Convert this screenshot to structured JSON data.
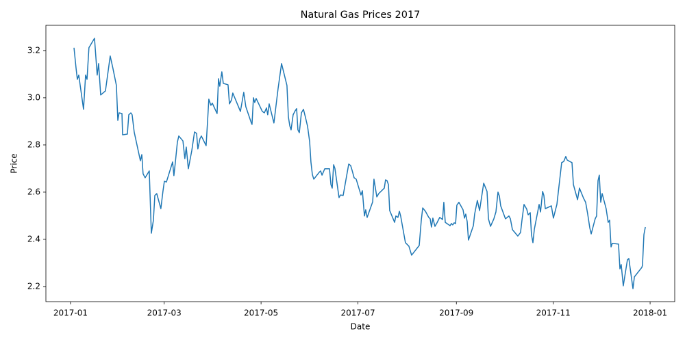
{
  "chart_data": {
    "type": "line",
    "title": "Natural Gas Prices 2017",
    "x_label": "Date",
    "y_label": "Price",
    "x": [
      2.2,
      3.5,
      4.3,
      5.2,
      8.2,
      9.5,
      10.4,
      11.6,
      15.1,
      16.8,
      17.7,
      19.0,
      22.0,
      25.0,
      26.7,
      28.9,
      29.8,
      30.6,
      32.4,
      32.8,
      35.8,
      36.7,
      38.0,
      38.8,
      40.1,
      44.0,
      44.9,
      45.7,
      47.0,
      49.6,
      50.9,
      52.2,
      53.1,
      54.3,
      56.9,
      58.2,
      59.1,
      60.4,
      64.3,
      65.1,
      66.0,
      67.3,
      68.2,
      70.8,
      72.0,
      72.9,
      74.2,
      76.4,
      78.1,
      79.4,
      80.2,
      81.5,
      82.4,
      85.4,
      86.3,
      87.1,
      88.4,
      89.3,
      92.3,
      93.2,
      94.0,
      95.3,
      96.2,
      99.2,
      100.1,
      101.4,
      102.2,
      107.0,
      109.1,
      110.4,
      113.9,
      114.3,
      115.2,
      116.0,
      116.9,
      120.8,
      122.1,
      123.4,
      124.2,
      125.1,
      128.1,
      130.7,
      132.9,
      136.3,
      137.2,
      138.1,
      138.9,
      140.2,
      141.5,
      142.4,
      143.2,
      144.1,
      145.4,
      146.7,
      148.0,
      149.3,
      150.6,
      151.4,
      152.3,
      153.2,
      156.6,
      157.5,
      158.4,
      160.1,
      163.1,
      164.0,
      164.8,
      165.7,
      166.5,
      169.1,
      170.0,
      171.7,
      175.2,
      176.4,
      177.3,
      178.6,
      179.9,
      182.9,
      183.8,
      185.1,
      185.9,
      186.8,
      190.3,
      191.1,
      192.9,
      194.1,
      197.6,
      198.4,
      199.3,
      200.2,
      201.0,
      204.1,
      204.9,
      206.2,
      207.1,
      207.9,
      210.9,
      213.1,
      214.8,
      219.6,
      220.9,
      221.8,
      223.5,
      225.6,
      226.5,
      227.3,
      228.2,
      229.5,
      230.8,
      232.5,
      234.3,
      235.1,
      236.0,
      239.0,
      239.9,
      240.7,
      241.6,
      242.5,
      243.3,
      244.6,
      247.2,
      248.1,
      248.9,
      249.8,
      250.6,
      253.7,
      254.5,
      256.2,
      257.6,
      260.2,
      262.3,
      263.2,
      264.5,
      266.6,
      267.9,
      269.2,
      270.1,
      270.9,
      273.9,
      276.1,
      277.0,
      278.3,
      281.7,
      283.4,
      284.3,
      285.6,
      287.3,
      288.2,
      289.5,
      290.3,
      291.2,
      292.1,
      295.1,
      296.0,
      297.3,
      298.1,
      299.0,
      302.8,
      304.1,
      306.3,
      309.3,
      310.6,
      311.9,
      312.8,
      315.8,
      316.7,
      319.3,
      320.5,
      323.1,
      324.4,
      325.7,
      327.0,
      327.9,
      330.4,
      331.3,
      332.2,
      333.0,
      333.9,
      334.8,
      337.3,
      338.6,
      339.5,
      340.4,
      341.2,
      345.1,
      346.0,
      346.8,
      348.1,
      350.7,
      351.6,
      353.3,
      354.2,
      355.1,
      359.8,
      360.2,
      361.1,
      362.0
    ],
    "series": [
      {
        "color": "#1f77b4",
        "values": [
          3.212,
          3.125,
          3.078,
          3.096,
          2.951,
          3.096,
          3.078,
          3.212,
          3.252,
          3.096,
          3.145,
          3.012,
          3.029,
          3.177,
          3.125,
          3.052,
          2.904,
          2.936,
          2.933,
          2.843,
          2.846,
          2.928,
          2.936,
          2.928,
          2.855,
          2.733,
          2.759,
          2.678,
          2.661,
          2.69,
          2.426,
          2.481,
          2.586,
          2.594,
          2.53,
          2.603,
          2.646,
          2.643,
          2.728,
          2.67,
          2.725,
          2.812,
          2.838,
          2.817,
          2.742,
          2.791,
          2.699,
          2.777,
          2.855,
          2.849,
          2.783,
          2.826,
          2.838,
          2.797,
          2.899,
          2.994,
          2.968,
          2.977,
          2.933,
          3.081,
          3.049,
          3.11,
          3.061,
          3.055,
          2.974,
          2.991,
          3.02,
          2.942,
          3.023,
          2.962,
          2.893,
          2.887,
          3.0,
          2.98,
          2.997,
          2.942,
          2.936,
          2.957,
          2.928,
          2.974,
          2.893,
          3.038,
          3.145,
          3.052,
          2.919,
          2.881,
          2.864,
          2.928,
          2.945,
          2.954,
          2.864,
          2.852,
          2.936,
          2.951,
          2.916,
          2.878,
          2.814,
          2.728,
          2.675,
          2.655,
          2.684,
          2.69,
          2.672,
          2.699,
          2.699,
          2.632,
          2.617,
          2.716,
          2.701,
          2.577,
          2.588,
          2.586,
          2.719,
          2.713,
          2.693,
          2.661,
          2.655,
          2.588,
          2.606,
          2.499,
          2.525,
          2.493,
          2.559,
          2.655,
          2.58,
          2.594,
          2.617,
          2.652,
          2.649,
          2.632,
          2.522,
          2.472,
          2.499,
          2.493,
          2.519,
          2.499,
          2.386,
          2.371,
          2.333,
          2.374,
          2.481,
          2.533,
          2.519,
          2.493,
          2.487,
          2.452,
          2.49,
          2.455,
          2.47,
          2.493,
          2.484,
          2.557,
          2.472,
          2.458,
          2.467,
          2.461,
          2.47,
          2.467,
          2.545,
          2.557,
          2.525,
          2.49,
          2.507,
          2.475,
          2.397,
          2.458,
          2.507,
          2.565,
          2.522,
          2.638,
          2.603,
          2.487,
          2.455,
          2.487,
          2.516,
          2.6,
          2.583,
          2.542,
          2.487,
          2.499,
          2.487,
          2.441,
          2.414,
          2.429,
          2.481,
          2.548,
          2.528,
          2.504,
          2.513,
          2.42,
          2.386,
          2.443,
          2.548,
          2.516,
          2.603,
          2.586,
          2.53,
          2.542,
          2.49,
          2.548,
          2.725,
          2.73,
          2.751,
          2.736,
          2.725,
          2.632,
          2.568,
          2.617,
          2.574,
          2.557,
          2.507,
          2.449,
          2.423,
          2.487,
          2.499,
          2.649,
          2.672,
          2.557,
          2.594,
          2.53,
          2.472,
          2.481,
          2.368,
          2.383,
          2.38,
          2.275,
          2.293,
          2.203,
          2.313,
          2.319,
          2.235,
          2.191,
          2.241,
          2.281,
          2.29,
          2.42,
          2.452
        ]
      }
    ],
    "xlim": [
      -15.5,
      380.5
    ],
    "xticks": [
      {
        "value": 0,
        "label": "2017-01"
      },
      {
        "value": 59,
        "label": "2017-03"
      },
      {
        "value": 120,
        "label": "2017-05"
      },
      {
        "value": 181,
        "label": "2017-07"
      },
      {
        "value": 243,
        "label": "2017-09"
      },
      {
        "value": 304,
        "label": "2017-11"
      },
      {
        "value": 365,
        "label": "2018-01"
      }
    ],
    "ylim": [
      2.136,
      3.307
    ],
    "yticks": [
      2.2,
      2.4,
      2.6,
      2.8,
      {
        "value": 3.0,
        "label": "3.0"
      },
      3.2
    ],
    "grid": false
  }
}
